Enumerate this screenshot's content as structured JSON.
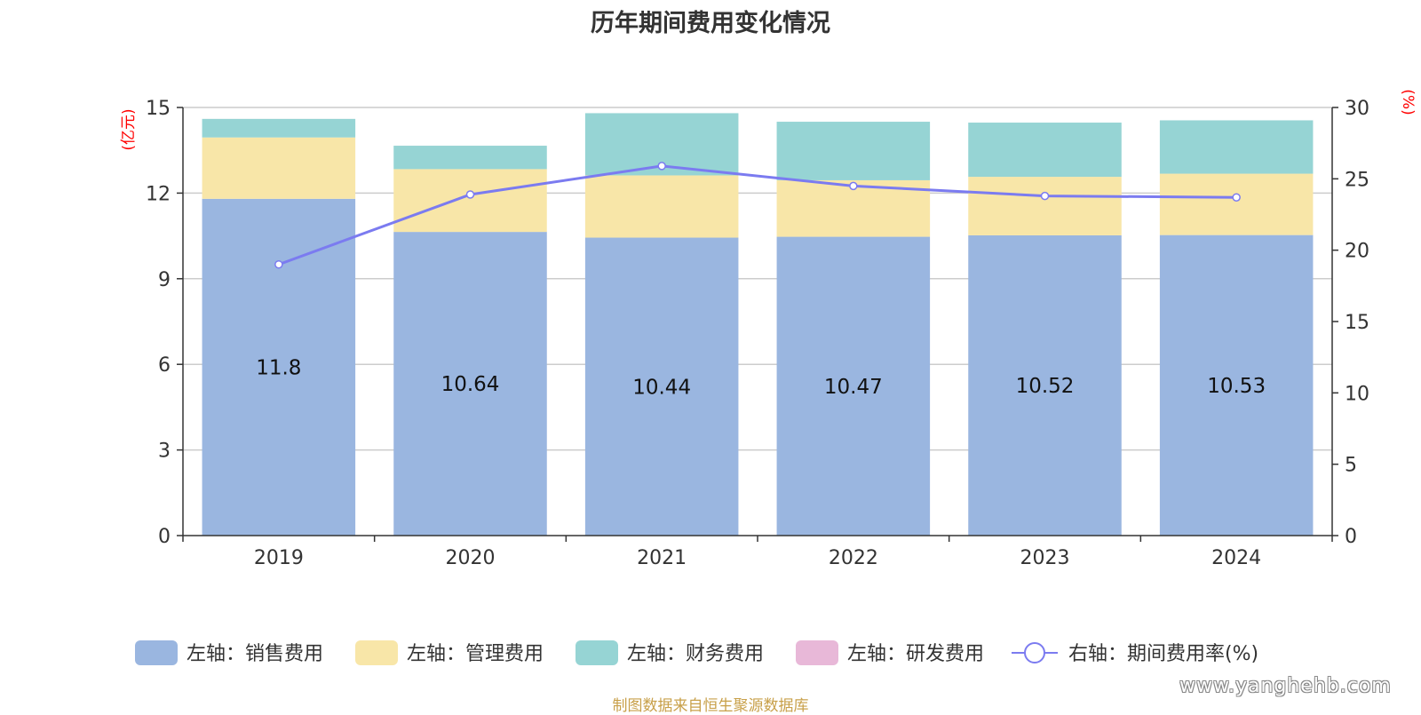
{
  "title": "历年期间费用变化情况",
  "footer": "制图数据来自恒生聚源数据库",
  "watermark": "www.yanghehb.com",
  "chart_data": {
    "type": "bar",
    "stacked": true,
    "categories": [
      "2019",
      "2020",
      "2021",
      "2022",
      "2023",
      "2024"
    ],
    "left_axis": {
      "label": "(亿元)",
      "ylim": [
        0,
        15
      ],
      "ticks": [
        0,
        3,
        6,
        9,
        12,
        15
      ],
      "label_color": "#ff0000"
    },
    "right_axis": {
      "label": "(%)",
      "ylim": [
        0,
        30
      ],
      "ticks": [
        0,
        5,
        10,
        15,
        20,
        25,
        30
      ],
      "label_color": "#ff0000"
    },
    "series": [
      {
        "name": "左轴：销售费用",
        "kind": "bar",
        "axis": "left",
        "color": "#9ab6e0",
        "values": [
          11.8,
          10.64,
          10.44,
          10.47,
          10.52,
          10.53
        ],
        "show_labels": true
      },
      {
        "name": "左轴：管理费用",
        "kind": "bar",
        "axis": "left",
        "color": "#f8e6a8",
        "values": [
          2.15,
          2.2,
          2.18,
          1.98,
          2.05,
          2.15
        ]
      },
      {
        "name": "左轴：财务费用",
        "kind": "bar",
        "axis": "left",
        "color": "#96d4d4",
        "values": [
          0.65,
          0.82,
          2.18,
          2.05,
          1.9,
          1.87
        ]
      },
      {
        "name": "左轴：研发费用",
        "kind": "bar",
        "axis": "left",
        "color": "#e8b8d8",
        "values": [
          0,
          0,
          0,
          0,
          0,
          0
        ]
      },
      {
        "name": "右轴：期间费用率(%)",
        "kind": "line",
        "axis": "right",
        "color": "#7b7bf0",
        "values": [
          19.0,
          23.9,
          25.9,
          24.5,
          23.8,
          23.7
        ]
      }
    ],
    "grid": true,
    "legend_position": "bottom"
  }
}
